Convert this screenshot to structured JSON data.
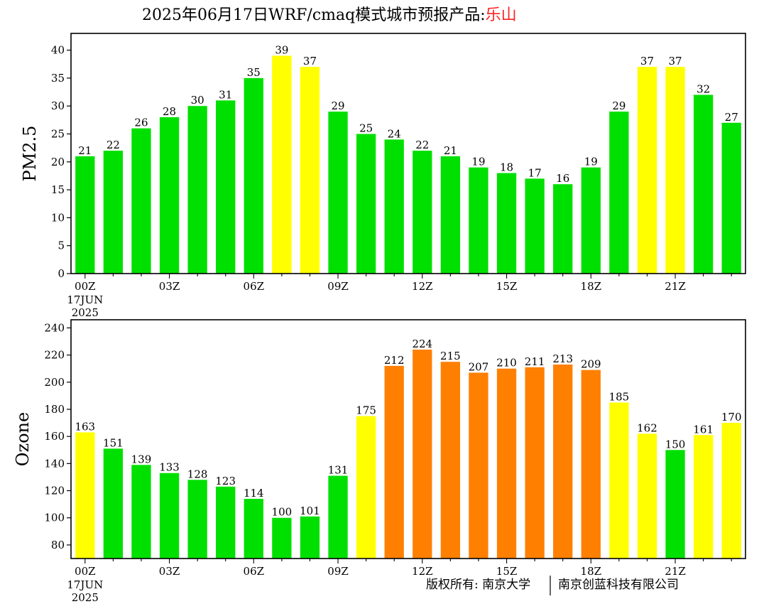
{
  "title": {
    "main": "2025年06月17日WRF/cmaq模式城市预报产品:",
    "city": "乐山"
  },
  "copyright": {
    "left": "版权所有: 南京大学",
    "right": "南京创蓝科技有限公司"
  },
  "chart_data": [
    {
      "type": "bar",
      "ylabel": "PM2.5",
      "ylim": [
        0,
        43
      ],
      "yticks": [
        0,
        5,
        10,
        15,
        20,
        25,
        30,
        35,
        40
      ],
      "x_tick_labels": [
        "00Z",
        "03Z",
        "06Z",
        "09Z",
        "12Z",
        "15Z",
        "18Z",
        "21Z"
      ],
      "x_tick_positions": [
        0,
        3,
        6,
        9,
        12,
        15,
        18,
        21
      ],
      "date_label": [
        "17JUN",
        "2025"
      ],
      "values": [
        21,
        22,
        26,
        28,
        30,
        31,
        35,
        39,
        37,
        29,
        25,
        24,
        22,
        21,
        19,
        18,
        17,
        16,
        19,
        29,
        37,
        37,
        32,
        27
      ],
      "colors": [
        "#00e000",
        "#00e000",
        "#00e000",
        "#00e000",
        "#00e000",
        "#00e000",
        "#00e000",
        "#ffff00",
        "#ffff00",
        "#00e000",
        "#00e000",
        "#00e000",
        "#00e000",
        "#00e000",
        "#00e000",
        "#00e000",
        "#00e000",
        "#00e000",
        "#00e000",
        "#00e000",
        "#ffff00",
        "#ffff00",
        "#00e000",
        "#00e000"
      ]
    },
    {
      "type": "bar",
      "ylabel": "Ozone",
      "ylim": [
        70,
        246
      ],
      "yticks": [
        80,
        100,
        120,
        140,
        160,
        180,
        200,
        220,
        240
      ],
      "x_tick_labels": [
        "00Z",
        "03Z",
        "06Z",
        "09Z",
        "12Z",
        "15Z",
        "18Z",
        "21Z"
      ],
      "x_tick_positions": [
        0,
        3,
        6,
        9,
        12,
        15,
        18,
        21
      ],
      "date_label": [
        "17JUN",
        "2025"
      ],
      "values": [
        163,
        151,
        139,
        133,
        128,
        123,
        114,
        100,
        101,
        131,
        175,
        212,
        224,
        215,
        207,
        210,
        211,
        213,
        209,
        185,
        162,
        150,
        161,
        170
      ],
      "colors": [
        "#ffff00",
        "#00e000",
        "#00e000",
        "#00e000",
        "#00e000",
        "#00e000",
        "#00e000",
        "#00e000",
        "#00e000",
        "#00e000",
        "#ffff00",
        "#ff8000",
        "#ff8000",
        "#ff8000",
        "#ff8000",
        "#ff8000",
        "#ff8000",
        "#ff8000",
        "#ff8000",
        "#ffff00",
        "#ffff00",
        "#00e000",
        "#ffff00",
        "#ffff00"
      ]
    }
  ]
}
